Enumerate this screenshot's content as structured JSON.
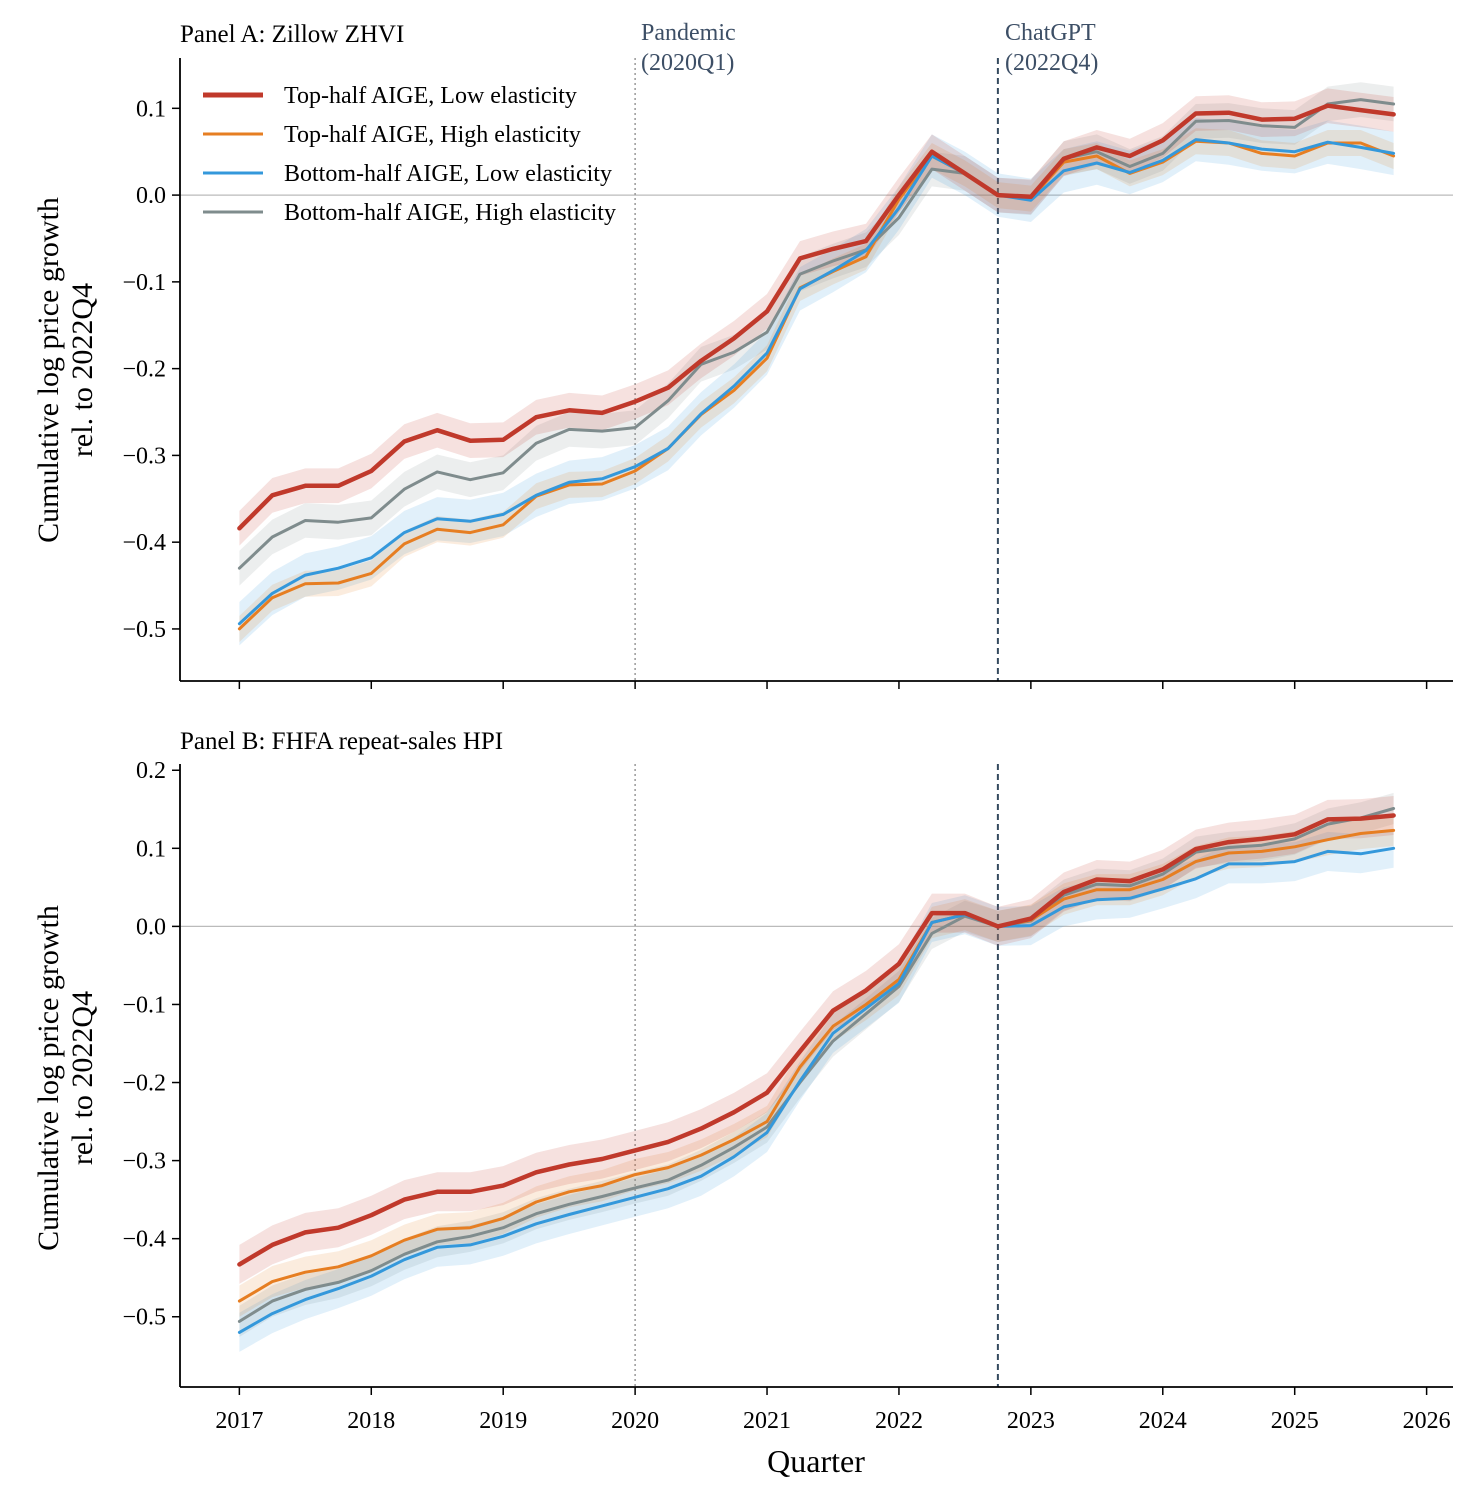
{
  "figure": {
    "x_label": "Quarter",
    "x_ticks": [
      "2017",
      "2018",
      "2019",
      "2020",
      "2021",
      "2022",
      "2023",
      "2024",
      "2025",
      "2026"
    ],
    "annotations": {
      "pandemic": {
        "line1": "Pandemic",
        "line2": "(2020Q1)",
        "x": 2020.0
      },
      "chatgpt": {
        "line1": "ChatGPT",
        "line2": "(2022Q4)",
        "x": 2022.75
      }
    },
    "colors": {
      "top_low": "#c0392b",
      "top_high": "#e67e22",
      "bottom_low": "#3498db",
      "bottom_high": "#7f8c8d",
      "chatgpt_line": "#34495e",
      "pandemic_line": "#999999"
    }
  },
  "legend": [
    {
      "key": "top_low",
      "label": "Top-half AIGE, Low elasticity"
    },
    {
      "key": "top_high",
      "label": "Top-half AIGE, High elasticity"
    },
    {
      "key": "bottom_low",
      "label": "Bottom-half AIGE, Low elasticity"
    },
    {
      "key": "bottom_high",
      "label": "Bottom-half AIGE, High elasticity"
    }
  ],
  "chart_data": [
    {
      "type": "line",
      "title": "Panel A: Zillow ZHVI",
      "ylabel_line1": "Cumulative log price growth",
      "ylabel_line2": "rel. to 2022Q4",
      "xlim": [
        2016.55,
        2026.2
      ],
      "ylim": [
        -0.56,
        0.158
      ],
      "yticks": [
        {
          "v": 0.1,
          "label": "0.1"
        },
        {
          "v": 0.0,
          "label": "0.0"
        },
        {
          "v": -0.1,
          "label": "−0.1"
        },
        {
          "v": -0.2,
          "label": "−0.2"
        },
        {
          "v": -0.3,
          "label": "−0.3"
        },
        {
          "v": -0.4,
          "label": "−0.4"
        },
        {
          "v": -0.5,
          "label": "−0.5"
        }
      ],
      "x": [
        2017.0,
        2017.25,
        2017.5,
        2017.75,
        2018.0,
        2018.25,
        2018.5,
        2018.75,
        2019.0,
        2019.25,
        2019.5,
        2019.75,
        2020.0,
        2020.25,
        2020.5,
        2020.75,
        2021.0,
        2021.25,
        2021.5,
        2021.75,
        2022.0,
        2022.25,
        2022.5,
        2022.75,
        2023.0,
        2023.25,
        2023.5,
        2023.75,
        2024.0,
        2024.25,
        2024.5,
        2024.75,
        2025.0,
        2025.25,
        2025.5,
        2025.75
      ],
      "series": [
        {
          "key": "top_low",
          "name": "Top-half AIGE, Low elasticity",
          "band": 0.02,
          "values": [
            -0.384,
            -0.346,
            -0.335,
            -0.335,
            -0.318,
            -0.284,
            -0.271,
            -0.283,
            -0.282,
            -0.256,
            -0.248,
            -0.251,
            -0.238,
            -0.222,
            -0.191,
            -0.165,
            -0.134,
            -0.073,
            -0.062,
            -0.053,
            0.0,
            0.05,
            0.025,
            0.0,
            -0.002,
            0.042,
            0.055,
            0.045,
            0.063,
            0.094,
            0.095,
            0.087,
            0.088,
            0.103,
            0.098,
            0.093
          ]
        },
        {
          "key": "top_high",
          "name": "Top-half AIGE, High elasticity",
          "band": 0.015,
          "values": [
            -0.5,
            -0.464,
            -0.448,
            -0.447,
            -0.436,
            -0.402,
            -0.385,
            -0.389,
            -0.38,
            -0.347,
            -0.334,
            -0.333,
            -0.318,
            -0.292,
            -0.253,
            -0.225,
            -0.188,
            -0.107,
            -0.088,
            -0.071,
            -0.005,
            0.045,
            0.025,
            0.0,
            -0.004,
            0.038,
            0.045,
            0.025,
            0.038,
            0.062,
            0.06,
            0.048,
            0.045,
            0.06,
            0.06,
            0.045
          ]
        },
        {
          "key": "bottom_low",
          "name": "Bottom-half AIGE, Low elasticity",
          "band": 0.025,
          "values": [
            -0.494,
            -0.459,
            -0.438,
            -0.43,
            -0.418,
            -0.389,
            -0.373,
            -0.376,
            -0.368,
            -0.346,
            -0.331,
            -0.327,
            -0.313,
            -0.292,
            -0.252,
            -0.22,
            -0.182,
            -0.108,
            -0.087,
            -0.064,
            -0.015,
            0.045,
            0.025,
            0.0,
            -0.006,
            0.028,
            0.037,
            0.026,
            0.04,
            0.064,
            0.06,
            0.053,
            0.05,
            0.061,
            0.055,
            0.048
          ]
        },
        {
          "key": "bottom_high",
          "name": "Bottom-half AIGE, High elasticity",
          "band": 0.02,
          "values": [
            -0.43,
            -0.394,
            -0.375,
            -0.377,
            -0.372,
            -0.339,
            -0.319,
            -0.328,
            -0.32,
            -0.286,
            -0.27,
            -0.272,
            -0.268,
            -0.237,
            -0.195,
            -0.181,
            -0.158,
            -0.091,
            -0.076,
            -0.063,
            -0.026,
            0.03,
            0.025,
            0.0,
            -0.003,
            0.042,
            0.05,
            0.033,
            0.048,
            0.085,
            0.086,
            0.08,
            0.078,
            0.105,
            0.11,
            0.105
          ]
        }
      ]
    },
    {
      "type": "line",
      "title": "Panel B: FHFA repeat-sales HPI",
      "ylabel_line1": "Cumulative log price growth",
      "ylabel_line2": "rel. to 2022Q4",
      "xlim": [
        2016.55,
        2026.2
      ],
      "ylim": [
        -0.59,
        0.208
      ],
      "yticks": [
        {
          "v": 0.2,
          "label": "0.2"
        },
        {
          "v": 0.1,
          "label": "0.1"
        },
        {
          "v": 0.0,
          "label": "0.0"
        },
        {
          "v": -0.1,
          "label": "−0.1"
        },
        {
          "v": -0.2,
          "label": "−0.2"
        },
        {
          "v": -0.3,
          "label": "−0.3"
        },
        {
          "v": -0.4,
          "label": "−0.4"
        },
        {
          "v": -0.5,
          "label": "−0.5"
        }
      ],
      "x": [
        2017.0,
        2017.25,
        2017.5,
        2017.75,
        2018.0,
        2018.25,
        2018.5,
        2018.75,
        2019.0,
        2019.25,
        2019.5,
        2019.75,
        2020.0,
        2020.25,
        2020.5,
        2020.75,
        2021.0,
        2021.25,
        2021.5,
        2021.75,
        2022.0,
        2022.25,
        2022.5,
        2022.75,
        2023.0,
        2023.25,
        2023.5,
        2023.75,
        2024.0,
        2024.25,
        2024.5,
        2024.75,
        2025.0,
        2025.25,
        2025.5,
        2025.75
      ],
      "series": [
        {
          "key": "top_low",
          "name": "Top-half AIGE, Low elasticity",
          "band": 0.025,
          "values": [
            -0.433,
            -0.408,
            -0.392,
            -0.386,
            -0.37,
            -0.35,
            -0.34,
            -0.34,
            -0.332,
            -0.315,
            -0.305,
            -0.298,
            -0.287,
            -0.276,
            -0.259,
            -0.238,
            -0.213,
            -0.16,
            -0.108,
            -0.082,
            -0.048,
            0.017,
            0.017,
            0.0,
            0.01,
            0.044,
            0.06,
            0.058,
            0.073,
            0.099,
            0.108,
            0.112,
            0.118,
            0.137,
            0.138,
            0.142
          ]
        },
        {
          "key": "top_high",
          "name": "Top-half AIGE, High elasticity",
          "band": 0.02,
          "values": [
            -0.48,
            -0.455,
            -0.443,
            -0.436,
            -0.422,
            -0.402,
            -0.388,
            -0.386,
            -0.374,
            -0.353,
            -0.34,
            -0.332,
            -0.318,
            -0.309,
            -0.293,
            -0.273,
            -0.25,
            -0.18,
            -0.128,
            -0.1,
            -0.068,
            0.005,
            0.015,
            0.0,
            0.008,
            0.035,
            0.047,
            0.047,
            0.06,
            0.083,
            0.094,
            0.096,
            0.102,
            0.111,
            0.119,
            0.123
          ]
        },
        {
          "key": "bottom_low",
          "name": "Bottom-half AIGE, Low elasticity",
          "band": 0.025,
          "values": [
            -0.52,
            -0.496,
            -0.478,
            -0.464,
            -0.448,
            -0.427,
            -0.411,
            -0.408,
            -0.397,
            -0.381,
            -0.369,
            -0.358,
            -0.347,
            -0.336,
            -0.32,
            -0.295,
            -0.264,
            -0.198,
            -0.137,
            -0.105,
            -0.073,
            0.005,
            0.015,
            0.0,
            0.001,
            0.025,
            0.034,
            0.036,
            0.048,
            0.061,
            0.08,
            0.08,
            0.083,
            0.096,
            0.093,
            0.1
          ]
        },
        {
          "key": "bottom_high",
          "name": "Bottom-half AIGE, High elasticity",
          "band": 0.02,
          "values": [
            -0.506,
            -0.48,
            -0.465,
            -0.456,
            -0.441,
            -0.42,
            -0.404,
            -0.397,
            -0.386,
            -0.368,
            -0.356,
            -0.346,
            -0.335,
            -0.325,
            -0.306,
            -0.283,
            -0.257,
            -0.2,
            -0.147,
            -0.112,
            -0.077,
            -0.009,
            0.013,
            0.0,
            0.007,
            0.04,
            0.054,
            0.052,
            0.067,
            0.095,
            0.101,
            0.104,
            0.112,
            0.131,
            0.139,
            0.151
          ]
        }
      ]
    }
  ]
}
